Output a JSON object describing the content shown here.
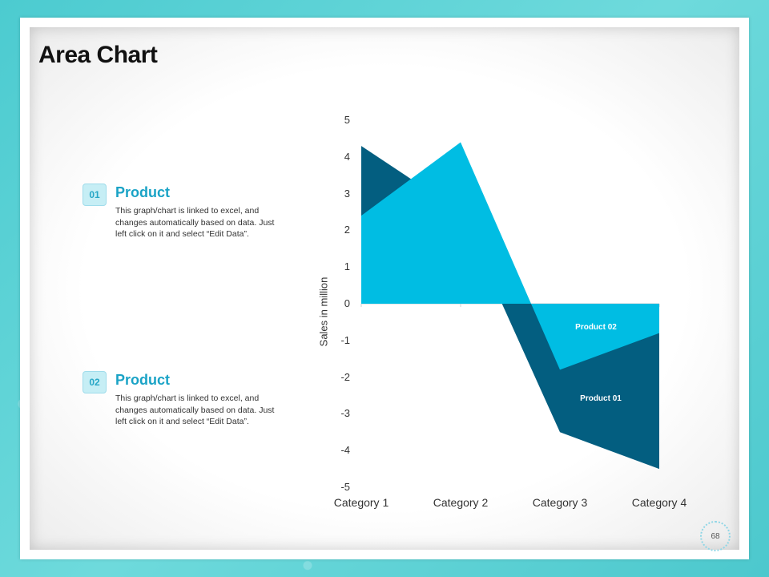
{
  "slide": {
    "title": "Area Chart",
    "page_number": "68"
  },
  "products": [
    {
      "badge": "01",
      "heading": "Product",
      "description": "This graph/chart is linked to excel, and changes automatically based on data. Just left click on it and select “Edit Data”."
    },
    {
      "badge": "02",
      "heading": "Product",
      "description": "This graph/chart is linked to excel, and changes automatically based on data. Just left click on it and select “Edit Data”."
    }
  ],
  "chart_data": {
    "type": "area",
    "categories": [
      "Category 1",
      "Category 2",
      "Category 3",
      "Category 4"
    ],
    "ylabel": "Sales in million",
    "xlabel": "",
    "title": "",
    "ylim": [
      -5,
      5
    ],
    "yticks": [
      "5",
      "4",
      "3",
      "2",
      "1",
      "0",
      "-1",
      "-2",
      "-3",
      "-4",
      "-5"
    ],
    "series": [
      {
        "name": "Product 01",
        "values": [
          4.3,
          2.5,
          -3.5,
          -4.5
        ],
        "color": "#035e80"
      },
      {
        "name": "Product 02",
        "values": [
          2.4,
          4.4,
          -1.8,
          -0.8
        ],
        "color": "#00bde3"
      }
    ],
    "grid": false,
    "legend": "data labels inside areas"
  }
}
